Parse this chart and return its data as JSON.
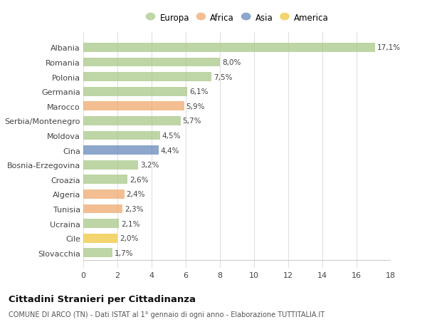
{
  "categories": [
    "Albania",
    "Romania",
    "Polonia",
    "Germania",
    "Marocco",
    "Serbia/Montenegro",
    "Moldova",
    "Cina",
    "Bosnia-Erzegovina",
    "Croazia",
    "Algeria",
    "Tunisia",
    "Ucraina",
    "Cile",
    "Slovacchia"
  ],
  "values": [
    17.1,
    8.0,
    7.5,
    6.1,
    5.9,
    5.7,
    4.5,
    4.4,
    3.2,
    2.6,
    2.4,
    2.3,
    2.1,
    2.0,
    1.7
  ],
  "labels": [
    "17,1%",
    "8,0%",
    "7,5%",
    "6,1%",
    "5,9%",
    "5,7%",
    "4,5%",
    "4,4%",
    "3,2%",
    "2,6%",
    "2,4%",
    "2,3%",
    "2,1%",
    "2,0%",
    "1,7%"
  ],
  "continents": [
    "Europa",
    "Europa",
    "Europa",
    "Europa",
    "Africa",
    "Europa",
    "Europa",
    "Asia",
    "Europa",
    "Europa",
    "Africa",
    "Africa",
    "Europa",
    "America",
    "Europa"
  ],
  "colors": {
    "Europa": "#a8c888",
    "Africa": "#f0a86e",
    "Asia": "#6688bb",
    "America": "#f0c840"
  },
  "xlim": [
    0,
    18
  ],
  "xticks": [
    0,
    2,
    4,
    6,
    8,
    10,
    12,
    14,
    16,
    18
  ],
  "title": "Cittadini Stranieri per Cittadinanza",
  "subtitle": "COMUNE DI ARCO (TN) - Dati ISTAT al 1° gennaio di ogni anno - Elaborazione TUTTITALIA.IT",
  "background_color": "#ffffff",
  "grid_color": "#e0e0e0",
  "bar_alpha": 0.75,
  "legend_order": [
    "Europa",
    "Africa",
    "Asia",
    "America"
  ]
}
